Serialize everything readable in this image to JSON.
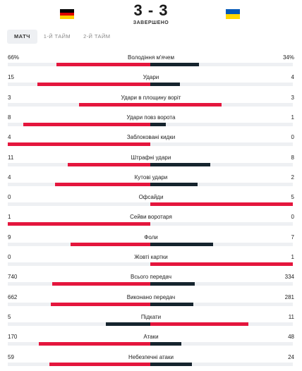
{
  "match": {
    "score": "3 - 3",
    "status": "ЗАВЕРШЕНО",
    "home_flag": [
      "#000000",
      "#dd0000",
      "#ffce00"
    ],
    "away_flag": [
      "#0057b7",
      "#ffd700"
    ]
  },
  "tabs": [
    {
      "label": "МАТЧ",
      "active": true
    },
    {
      "label": "1-Й ТАЙМ",
      "active": false
    },
    {
      "label": "2-Й ТАЙМ",
      "active": false
    }
  ],
  "colors": {
    "better": "#e4163d",
    "worse": "#16242e",
    "track": "#eef0f3"
  },
  "stats": [
    {
      "label": "Володіння м'ячем",
      "home": "66%",
      "away": "34%",
      "home_value": 66,
      "away_value": 34,
      "home_fill": 0.66,
      "away_fill": 0.34
    },
    {
      "label": "Удари",
      "home": "15",
      "away": "4",
      "home_value": 15,
      "away_value": 4,
      "home_fill": 0.79,
      "away_fill": 0.21
    },
    {
      "label": "Удари в площину воріт",
      "home": "3",
      "away": "3",
      "home_value": 3,
      "away_value": 3,
      "home_fill": 0.5,
      "away_fill": 0.5
    },
    {
      "label": "Удари повз ворота",
      "home": "8",
      "away": "1",
      "home_value": 8,
      "away_value": 1,
      "home_fill": 0.89,
      "away_fill": 0.11
    },
    {
      "label": "Заблоковані кидки",
      "home": "4",
      "away": "0",
      "home_value": 4,
      "away_value": 0,
      "home_fill": 1.0,
      "away_fill": 0.0
    },
    {
      "label": "Штрафні удари",
      "home": "11",
      "away": "8",
      "home_value": 11,
      "away_value": 8,
      "home_fill": 0.58,
      "away_fill": 0.42
    },
    {
      "label": "Кутові удари",
      "home": "4",
      "away": "2",
      "home_value": 4,
      "away_value": 2,
      "home_fill": 0.67,
      "away_fill": 0.33
    },
    {
      "label": "Офсайди",
      "home": "0",
      "away": "5",
      "home_value": 0,
      "away_value": 5,
      "home_fill": 0.0,
      "away_fill": 1.0
    },
    {
      "label": "Сейви воротаря",
      "home": "1",
      "away": "0",
      "home_value": 1,
      "away_value": 0,
      "home_fill": 1.0,
      "away_fill": 0.0
    },
    {
      "label": "Фоли",
      "home": "9",
      "away": "7",
      "home_value": 9,
      "away_value": 7,
      "home_fill": 0.56,
      "away_fill": 0.44
    },
    {
      "label": "Жовті картки",
      "home": "0",
      "away": "1",
      "home_value": 0,
      "away_value": 1,
      "home_fill": 0.0,
      "away_fill": 1.0
    },
    {
      "label": "Всього передач",
      "home": "740",
      "away": "334",
      "home_value": 740,
      "away_value": 334,
      "home_fill": 0.69,
      "away_fill": 0.31
    },
    {
      "label": "Виконано передач",
      "home": "662",
      "away": "281",
      "home_value": 662,
      "away_value": 281,
      "home_fill": 0.7,
      "away_fill": 0.3
    },
    {
      "label": "Підкати",
      "home": "5",
      "away": "11",
      "home_value": 5,
      "away_value": 11,
      "home_fill": 0.31,
      "away_fill": 0.69
    },
    {
      "label": "Атаки",
      "home": "170",
      "away": "48",
      "home_value": 170,
      "away_value": 48,
      "home_fill": 0.78,
      "away_fill": 0.22
    },
    {
      "label": "Небезпечні атаки",
      "home": "59",
      "away": "24",
      "home_value": 59,
      "away_value": 24,
      "home_fill": 0.71,
      "away_fill": 0.29
    }
  ]
}
